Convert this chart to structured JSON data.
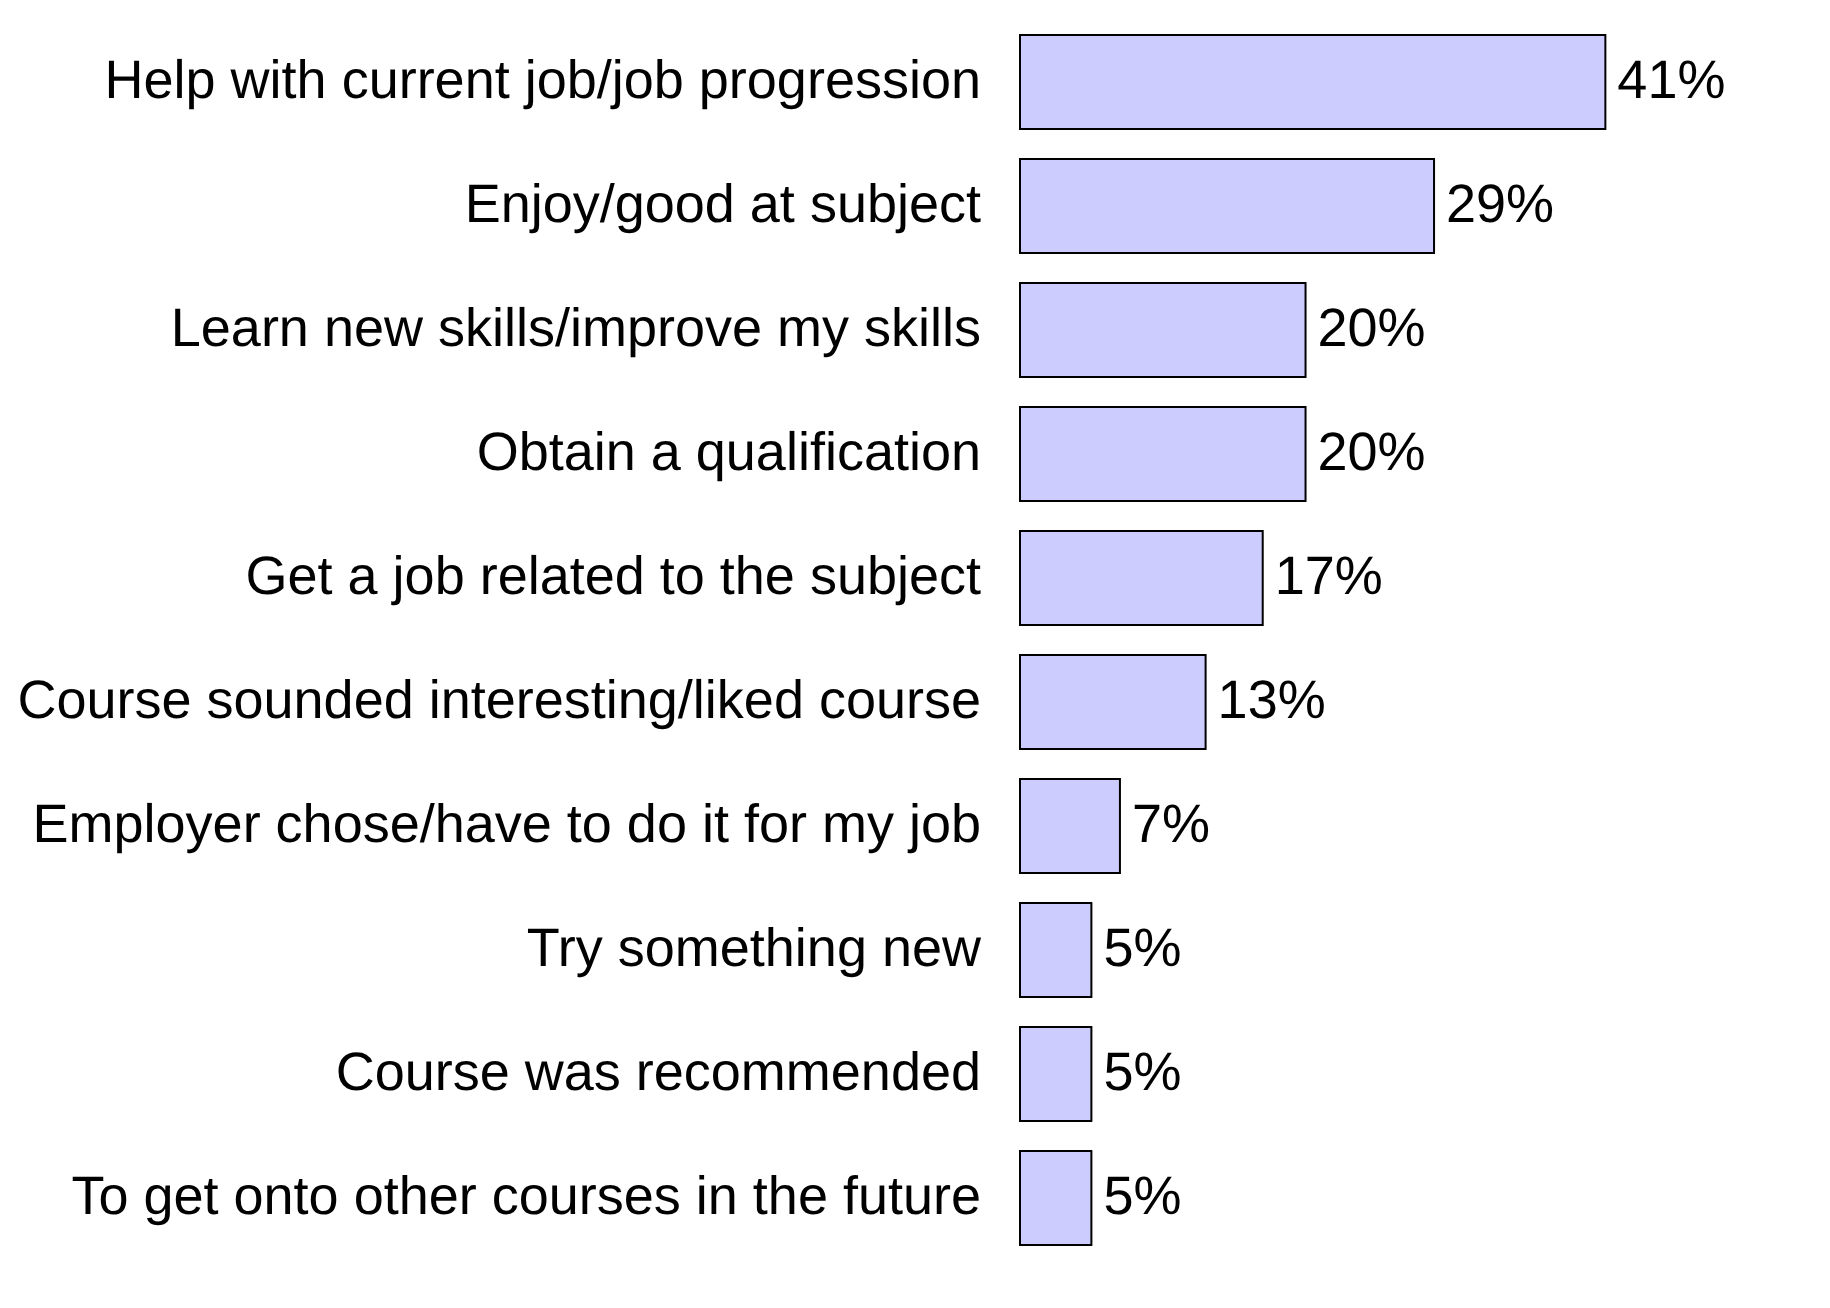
{
  "chart_data": {
    "type": "bar",
    "orientation": "horizontal",
    "categories": [
      "Help with current job/job progression",
      "Enjoy/good at subject",
      "Learn new skills/improve my skills",
      "Obtain a qualification",
      "Get a job related to the subject",
      "Course sounded interesting/liked course",
      "Employer chose/have to do it for my job",
      "Try something new",
      "Course was recommended",
      "To get onto other courses in the future"
    ],
    "values": [
      41,
      29,
      20,
      20,
      17,
      13,
      7,
      5,
      5,
      5
    ],
    "value_labels": [
      "41%",
      "29%",
      "20%",
      "20%",
      "17%",
      "13%",
      "7%",
      "5%",
      "5%",
      "5%"
    ],
    "color": "#ccccff",
    "grid": false
  }
}
